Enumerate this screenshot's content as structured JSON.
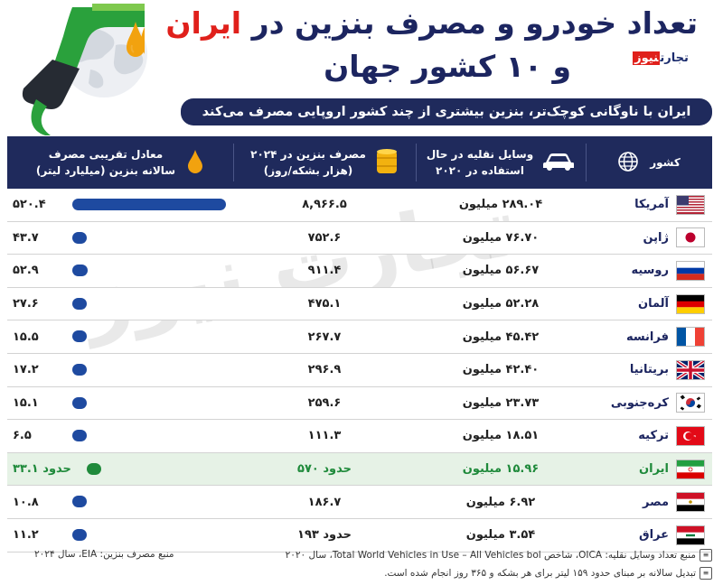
{
  "header": {
    "title_line1_prefix": "تعداد خودرو و مصرف بنزین در",
    "title_line1_highlight": "ایران",
    "title_line2": "و ۱۰ کشور جهان",
    "brand_part1": "تجارت",
    "brand_part2": "نیوز",
    "subtitle": "ایران با ناوگانی کوچک‌تر، بنزین بیشتری از چند کشور اروپایی مصرف می‌کند",
    "colors": {
      "title": "#1c2560",
      "highlight": "#e0201b",
      "header_bg": "#1f2a5c"
    }
  },
  "table": {
    "col_country": "کشور",
    "col_vehicles_line1": "وسایل نقلیه در حال",
    "col_vehicles_line2": "استفاده در ۲۰۲۰",
    "col_consumption_line1": "مصرف بنزین در ۲۰۲۴",
    "col_consumption_line2": "(هزار بشکه/روز)",
    "col_gasoline_line1": "معادل تقریبی مصرف",
    "col_gasoline_line2": "سالانه بنزین (میلیارد لیتر)",
    "rows": [
      {
        "country": "آمریکا",
        "flag": "us",
        "vehicles": "۲۸۹.۰۴ میلیون",
        "consumption": "۸,۹۶۶.۵",
        "gasoline": "۵۲۰.۴",
        "gasoline_value": 520.4
      },
      {
        "country": "ژاپن",
        "flag": "jp",
        "vehicles": "۷۶.۷۰ میلیون",
        "consumption": "۷۵۲.۶",
        "gasoline": "۴۳.۷",
        "gasoline_value": 43.7
      },
      {
        "country": "روسیه",
        "flag": "ru",
        "vehicles": "۵۶.۶۷ میلیون",
        "consumption": "۹۱۱.۴",
        "gasoline": "۵۲.۹",
        "gasoline_value": 52.9
      },
      {
        "country": "آلمان",
        "flag": "de",
        "vehicles": "۵۲.۲۸ میلیون",
        "consumption": "۴۷۵.۱",
        "gasoline": "۲۷.۶",
        "gasoline_value": 27.6
      },
      {
        "country": "فرانسه",
        "flag": "fr",
        "vehicles": "۴۵.۴۲ میلیون",
        "consumption": "۲۶۷.۷",
        "gasoline": "۱۵.۵",
        "gasoline_value": 15.5
      },
      {
        "country": "بریتانیا",
        "flag": "gb",
        "vehicles": "۴۲.۴۰ میلیون",
        "consumption": "۲۹۶.۹",
        "gasoline": "۱۷.۲",
        "gasoline_value": 17.2
      },
      {
        "country": "کره‌جنوبی",
        "flag": "kr",
        "vehicles": "۲۳.۷۳ میلیون",
        "consumption": "۲۵۹.۶",
        "gasoline": "۱۵.۱",
        "gasoline_value": 15.1
      },
      {
        "country": "ترکیه",
        "flag": "tr",
        "vehicles": "۱۸.۵۱ میلیون",
        "consumption": "۱۱۱.۳",
        "gasoline": "۶.۵",
        "gasoline_value": 6.5
      },
      {
        "country": "ایران",
        "flag": "ir",
        "vehicles": "۱۵.۹۶ میلیون",
        "consumption": "حدود ۵۷۰",
        "gasoline": "حدود ۳۳.۱",
        "gasoline_value": 33.1,
        "highlight": true
      },
      {
        "country": "مصر",
        "flag": "eg",
        "vehicles": "۶.۹۲ میلیون",
        "consumption": "۱۸۶.۷",
        "gasoline": "۱۰.۸",
        "gasoline_value": 10.8
      },
      {
        "country": "عراق",
        "flag": "iq",
        "vehicles": "۳.۵۴ میلیون",
        "consumption": "حدود ۱۹۳",
        "gasoline": "۱۱.۲",
        "gasoline_value": 11.2
      }
    ]
  },
  "footer": {
    "source_vehicles": "منبع تعداد وسایل نقلیه: OICA، شاخص Total World Vehicles in Use – All Vehicles bol، سال ۲۰۲۰",
    "source_fuel": "منبع مصرف بنزین: EIA، سال ۲۰۲۴",
    "conversion": "تبدیل سالانه بر مبنای حدود ۱۵۹ لیتر برای هر بشکه و ۳۶۵ روز انجام شده است."
  },
  "watermark": "تجارت نیوز"
}
